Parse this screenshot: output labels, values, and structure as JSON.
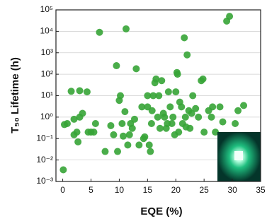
{
  "chart_data": {
    "type": "scatter",
    "x_label": "EQE (%)",
    "y_label": "T₅₀ Lifetime (h)",
    "color": "#36a436",
    "grid": true,
    "y_scale": "log",
    "xlim": [
      -1.2,
      35
    ],
    "xticks": [
      0,
      5,
      10,
      15,
      20,
      25,
      30,
      35
    ],
    "ylim": [
      0.001,
      100000
    ],
    "yticks": [
      {
        "value": 0.001,
        "label": "10⁻³"
      },
      {
        "value": 0.01,
        "label": "10⁻²"
      },
      {
        "value": 0.1,
        "label": "10⁻¹"
      },
      {
        "value": 1,
        "label": "10⁰"
      },
      {
        "value": 10,
        "label": "10¹"
      },
      {
        "value": 100,
        "label": "10²"
      },
      {
        "value": 1000,
        "label": "10³"
      },
      {
        "value": 10000,
        "label": "10⁴"
      },
      {
        "value": 100000,
        "label": "10⁵"
      }
    ],
    "x": [
      0.1,
      0.3,
      0.8,
      1.5,
      2,
      2.5,
      2.7,
      2,
      3,
      3,
      3.5,
      4.3,
      4.5,
      5,
      5.5,
      5.8,
      6.5,
      7.5,
      8.5,
      9,
      9.5,
      9.7,
      10,
      10.2,
      10.5,
      10.7,
      11,
      11.2,
      11.5,
      11.8,
      12,
      12.3,
      12.7,
      13,
      13.5,
      14,
      14.3,
      14.5,
      15,
      15,
      15.3,
      15.5,
      15.7,
      15.8,
      16,
      16.3,
      16.5,
      16.8,
      17,
      17.2,
      17.5,
      17.8,
      18,
      18.3,
      18.5,
      18.7,
      19,
      19.3,
      19.5,
      19.8,
      20,
      20.2,
      20.3,
      20.5,
      20.7,
      21,
      21.2,
      21.5,
      21.7,
      21.8,
      22,
      22.3,
      22.5,
      22.8,
      23,
      23.5,
      24,
      24.5,
      24.8,
      25,
      25.8,
      26.3,
      26.5,
      27,
      27.8,
      28.3,
      29,
      29.5,
      30.5,
      31,
      32
    ],
    "values": [
      0.0035,
      0.45,
      0.5,
      16,
      0.15,
      0.2,
      0.07,
      0.8,
      17,
      1,
      1.5,
      15,
      0.2,
      0.2,
      0.2,
      0.5,
      9000,
      0.025,
      0.4,
      0.15,
      250,
      0.025,
      6,
      10,
      0.5,
      0.13,
      1.8,
      13000,
      0.05,
      0.15,
      0.5,
      0.3,
      0.8,
      180,
      0.05,
      3,
      0.1,
      0.12,
      10,
      3,
      0.05,
      0.025,
      0.5,
      2,
      10,
      40,
      60,
      1,
      10,
      0.3,
      50,
      1.5,
      1,
      0.3,
      0.5,
      15,
      3,
      0.5,
      1,
      0.15,
      15,
      120,
      100,
      0.2,
      5,
      3,
      0.5,
      5000,
      1,
      0.35,
      800,
      2,
      0.3,
      1.5,
      10,
      2.5,
      1,
      50,
      60,
      0.2,
      2,
      1,
      3,
      0.2,
      3,
      0.6,
      30000,
      50000,
      0.5,
      2,
      3.5
    ]
  }
}
